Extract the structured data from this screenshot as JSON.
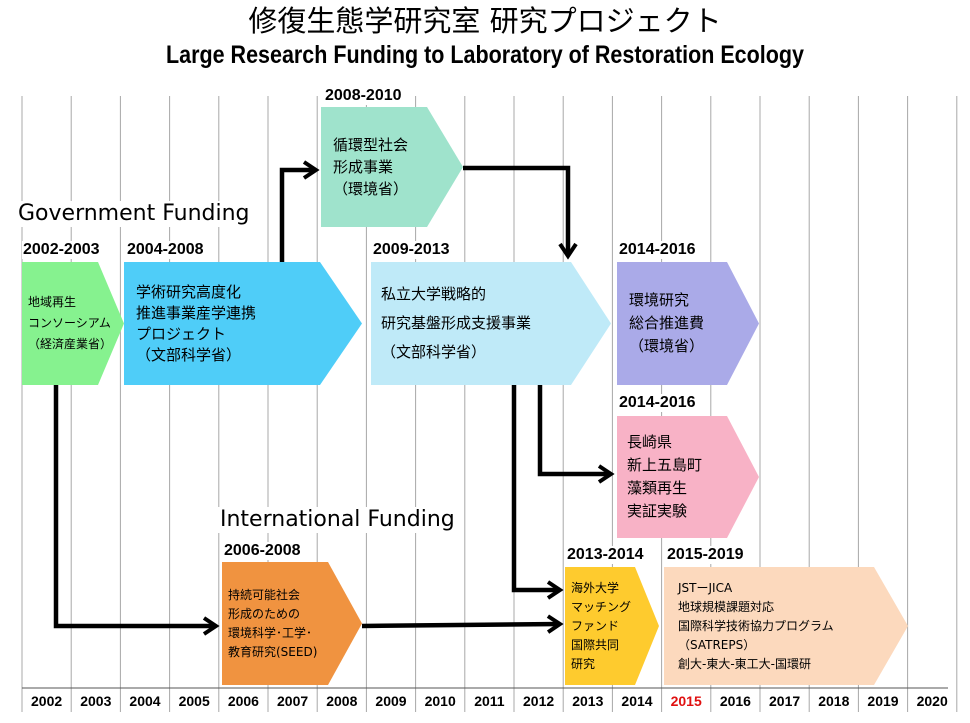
{
  "title_jp": "修復生態学研究室 研究プロジェクト",
  "title_en": "Large Research Funding to Laboratory of Restoration Ecology",
  "sections": {
    "government": "Government Funding",
    "international": "International Funding"
  },
  "years": [
    "2002",
    "2003",
    "2004",
    "2005",
    "2006",
    "2007",
    "2008",
    "2009",
    "2010",
    "2011",
    "2012",
    "2013",
    "2014",
    "2015",
    "2016",
    "2017",
    "2018",
    "2019",
    "2020"
  ],
  "highlight_year": "2015",
  "colors": {
    "chiiki": "#86f28f",
    "gakujutsu": "#4fcdf8",
    "junkan": "#9fe3cc",
    "shiritsu": "#bfeaf8",
    "kankyo": "#aaaae8",
    "nagasaki": "#f8b2c6",
    "seed": "#f09340",
    "kaigai": "#fecb2e",
    "jst": "#fcd9bd",
    "highlight_year": "#e01010"
  },
  "blocks": {
    "chiiki": {
      "period": "2002-2003",
      "lines": [
        "地域再生",
        "コンソーシアム",
        "（経済産業省）"
      ]
    },
    "gakujutsu": {
      "period": "2004-2008",
      "lines": [
        "学術研究高度化",
        "推進事業産学連携",
        "プロジェクト",
        "（文部科学省）"
      ]
    },
    "junkan": {
      "period": "2008-2010",
      "lines": [
        "循環型社会",
        "形成事業",
        "（環境省）"
      ]
    },
    "shiritsu": {
      "period": "2009-2013",
      "lines": [
        "私立大学戦略的",
        "研究基盤形成支援事業",
        "（文部科学省）"
      ]
    },
    "kankyo": {
      "period": "2014-2016",
      "lines": [
        "環境研究",
        "総合推進費",
        "（環境省）"
      ]
    },
    "nagasaki": {
      "period": "2014-2016",
      "lines": [
        "長崎県",
        "新上五島町",
        "藻類再生",
        "実証実験"
      ]
    },
    "seed": {
      "period": "2006-2008",
      "lines": [
        "持続可能社会",
        "形成のための",
        "環境科学･工学･",
        "教育研究(SEED)"
      ]
    },
    "kaigai": {
      "period": "2013-2014",
      "lines": [
        "海外大学",
        "マッチング",
        "ファンド",
        "国際共同",
        "研究"
      ]
    },
    "jst": {
      "period": "2015-2019",
      "lines": [
        "JSTーJICA",
        "地球規模課題対応",
        "国際科学技術協力プログラム",
        "（SATREPS）",
        "創大-東大-東工大-国環研"
      ]
    }
  }
}
